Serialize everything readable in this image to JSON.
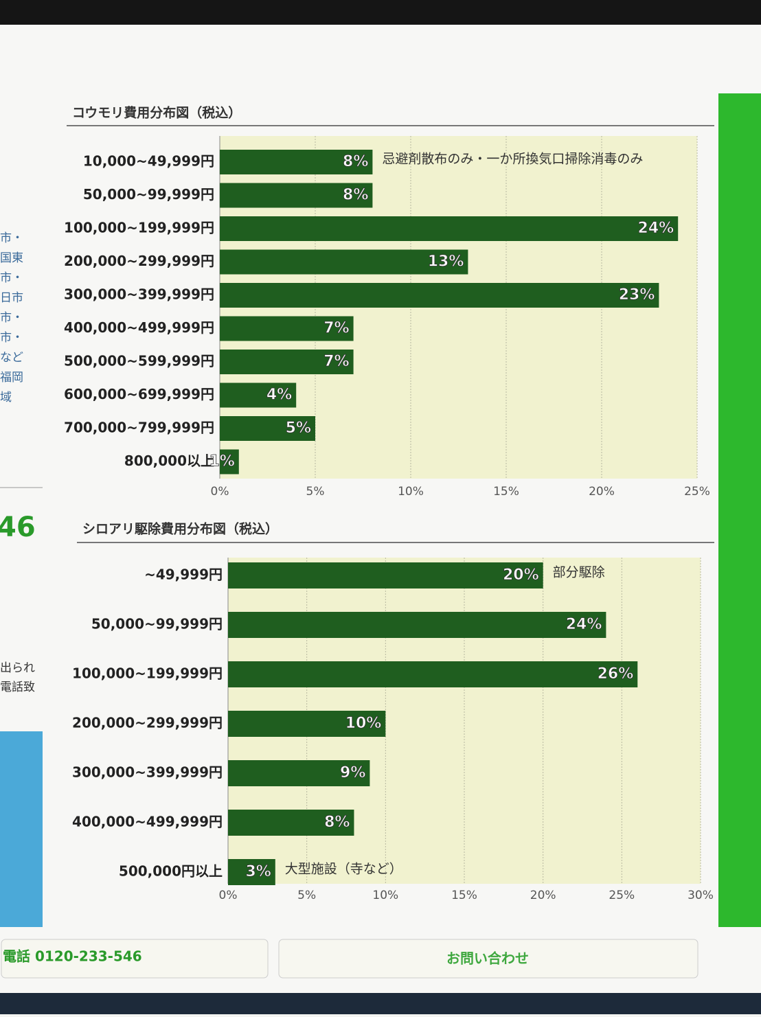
{
  "sidebar": {
    "lines": [
      "市・",
      "国東",
      "市・",
      "日市",
      "市・",
      "市・",
      "など",
      "福岡",
      "域"
    ],
    "number": "46",
    "lines2": [
      "出られ",
      "電話致"
    ]
  },
  "chart_data": [
    {
      "type": "bar",
      "title": "コウモリ費用分布図（税込）",
      "color": "#1f5e1f",
      "categories": [
        "10,000~49,999円",
        "50,000~99,999円",
        "100,000~199,999円",
        "200,000~299,999円",
        "300,000~399,999円",
        "400,000~499,999円",
        "500,000~599,999円",
        "600,000~699,999円",
        "700,000~799,999円",
        "800,000以上"
      ],
      "values": [
        8,
        8,
        24,
        13,
        23,
        7,
        7,
        4,
        5,
        1
      ],
      "value_labels": [
        "8%",
        "8%",
        "24%",
        "13%",
        "23%",
        "7%",
        "7%",
        "4%",
        "5%",
        "1%"
      ],
      "notes": [
        "忌避剤散布のみ・一か所換気口掃除消毒のみ",
        null,
        null,
        null,
        null,
        null,
        null,
        null,
        null,
        null
      ],
      "xlim": [
        0,
        25
      ],
      "xticks": [
        {
          "value": 0,
          "label": "0%"
        },
        {
          "value": 5,
          "label": "5%"
        },
        {
          "value": 10,
          "label": "10%"
        },
        {
          "value": 15,
          "label": "15%"
        },
        {
          "value": 20,
          "label": "20%"
        },
        {
          "value": 25,
          "label": "25%"
        }
      ],
      "grid": true
    },
    {
      "type": "bar",
      "title": "シロアリ駆除費用分布図（税込）",
      "color": "#1f5e1f",
      "categories": [
        "~49,999円",
        "50,000~99,999円",
        "100,000~199,999円",
        "200,000~299,999円",
        "300,000~399,999円",
        "400,000~499,999円",
        "500,000円以上"
      ],
      "values": [
        20,
        24,
        26,
        10,
        9,
        8,
        3
      ],
      "value_labels": [
        "20%",
        "24%",
        "26%",
        "10%",
        "9%",
        "8%",
        "3%"
      ],
      "notes": [
        "部分駆除",
        null,
        null,
        null,
        null,
        null,
        "大型施設（寺など）"
      ],
      "xlim": [
        0,
        30
      ],
      "xticks": [
        {
          "value": 0,
          "label": "0%"
        },
        {
          "value": 5,
          "label": "5%"
        },
        {
          "value": 10,
          "label": "10%"
        },
        {
          "value": 15,
          "label": "15%"
        },
        {
          "value": 20,
          "label": "20%"
        },
        {
          "value": 25,
          "label": "25%"
        },
        {
          "value": 30,
          "label": "30%"
        }
      ],
      "grid": true
    }
  ],
  "footer": {
    "phone": "電話 0120-233-546",
    "contact": "お問い合わせ"
  }
}
